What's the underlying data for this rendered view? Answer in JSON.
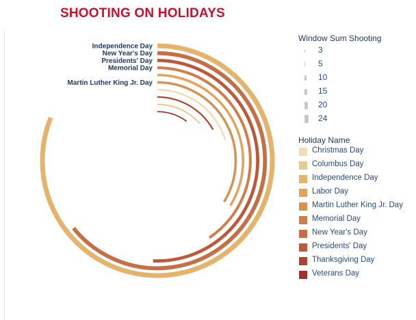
{
  "title": "SHOOTING ON HOLIDAYS",
  "legend": {
    "size_title": "Window Sum Shooting",
    "sizes": [
      "3",
      "5",
      "10",
      "15",
      "20",
      "24"
    ],
    "color_title": "Holiday Name",
    "holidays": [
      {
        "name": "Christmas Day",
        "color": "#f0dcb9"
      },
      {
        "name": "Columbus Day",
        "color": "#e9c992"
      },
      {
        "name": "Independence Day",
        "color": "#e5b46c"
      },
      {
        "name": "Labor Day",
        "color": "#dfa35c"
      },
      {
        "name": "Martin Luther King Jr. Day",
        "color": "#d59255"
      },
      {
        "name": "Memorial Day",
        "color": "#cd7e4b"
      },
      {
        "name": "New Year's Day",
        "color": "#c46f45"
      },
      {
        "name": "Presidents' Day",
        "color": "#b95b3b"
      },
      {
        "name": "Thanksgiving Day",
        "color": "#ae4331"
      },
      {
        "name": "Veterans Day",
        "color": "#a3302c"
      }
    ]
  },
  "chart_data": {
    "type": "radial-bar",
    "title": "SHOOTING ON HOLIDAYS",
    "series": [
      {
        "name": "Independence Day",
        "value": 24,
        "label": "Independence Day",
        "color": "#e5b46c"
      },
      {
        "name": "New Year's Day",
        "value": 19,
        "label": "New Year's Day",
        "color": "#c46f45"
      },
      {
        "name": "Presidents' Day",
        "value": 15,
        "label": "Presidents' Day",
        "color": "#b95b3b"
      },
      {
        "name": "Memorial Day",
        "value": 12,
        "label": "Memorial Day",
        "color": "#cd7e4b"
      },
      {
        "name": "Labor Day",
        "value": 10,
        "label": "",
        "color": "#dfa35c"
      },
      {
        "name": "Martin Luther King Jr. Day",
        "value": 10,
        "label": "Martin Luther King Jr. Day",
        "color": "#d59255"
      },
      {
        "name": "Christmas Day",
        "value": 6,
        "label": "",
        "color": "#f0dcb9"
      },
      {
        "name": "Thanksgiving Day",
        "value": 5,
        "label": "",
        "color": "#ae4331"
      },
      {
        "name": "Columbus Day",
        "value": 4,
        "label": "",
        "color": "#e9c992"
      },
      {
        "name": "Veterans Day",
        "value": 3,
        "label": "",
        "color": "#a3302c"
      }
    ],
    "size_legend": [
      3,
      5,
      10,
      15,
      20,
      24
    ],
    "legend_placement": "right"
  }
}
